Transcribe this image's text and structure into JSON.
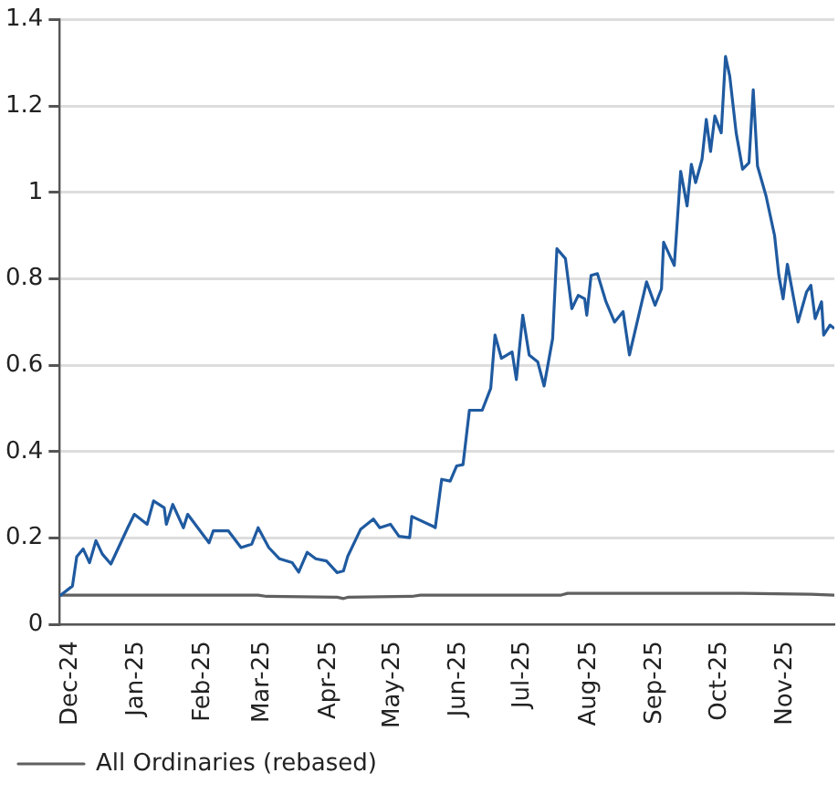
{
  "chart_data": {
    "type": "line",
    "xlim": [
      "2024-11-26",
      "2025-11-24"
    ],
    "ylim": [
      0,
      1.4
    ],
    "yticks": [
      0,
      0.2,
      0.4,
      0.6,
      0.8,
      1,
      1.2,
      1.4
    ],
    "xticks": [
      {
        "value": "2024-12-01",
        "label": "Dec-24"
      },
      {
        "value": "2025-01-01",
        "label": "Jan-25"
      },
      {
        "value": "2025-02-01",
        "label": "Feb-25"
      },
      {
        "value": "2025-03-01",
        "label": "Mar-25"
      },
      {
        "value": "2025-04-01",
        "label": "Apr-25"
      },
      {
        "value": "2025-05-01",
        "label": "May-25"
      },
      {
        "value": "2025-06-01",
        "label": "Jun-25"
      },
      {
        "value": "2025-07-01",
        "label": "Jul-25"
      },
      {
        "value": "2025-08-01",
        "label": "Aug-25"
      },
      {
        "value": "2025-09-01",
        "label": "Sep-25"
      },
      {
        "value": "2025-10-01",
        "label": "Oct-25"
      },
      {
        "value": "2025-11-01",
        "label": "Nov-25"
      }
    ],
    "grid": "y",
    "legend": "bottom",
    "marker": "none",
    "line_style": "solid",
    "series": [
      {
        "color": "#1f5aa0",
        "x": [
          "2024-11-26",
          "2024-12-02",
          "2024-12-04",
          "2024-12-07",
          "2024-12-10",
          "2024-12-13",
          "2024-12-16",
          "2024-12-20",
          "2024-12-28",
          "2024-12-31",
          "2025-01-06",
          "2025-01-09",
          "2025-01-14",
          "2025-01-15",
          "2025-01-18",
          "2025-01-23",
          "2025-01-25",
          "2025-02-04",
          "2025-02-06",
          "2025-02-13",
          "2025-02-19",
          "2025-02-24",
          "2025-02-27",
          "2025-03-04",
          "2025-03-09",
          "2025-03-15",
          "2025-03-18",
          "2025-03-22",
          "2025-03-26",
          "2025-03-31",
          "2025-04-05",
          "2025-04-08",
          "2025-04-10",
          "2025-04-16",
          "2025-04-22",
          "2025-04-25",
          "2025-04-30",
          "2025-05-04",
          "2025-05-09",
          "2025-05-10",
          "2025-05-20",
          "2025-05-21",
          "2025-05-24",
          "2025-05-28",
          "2025-05-31",
          "2025-06-03",
          "2025-06-06",
          "2025-06-12",
          "2025-06-16",
          "2025-06-18",
          "2025-06-21",
          "2025-06-26",
          "2025-06-28",
          "2025-07-01",
          "2025-07-04",
          "2025-07-08",
          "2025-07-11",
          "2025-07-15",
          "2025-07-17",
          "2025-07-21",
          "2025-07-24",
          "2025-07-27",
          "2025-07-30",
          "2025-07-31",
          "2025-08-02",
          "2025-08-05",
          "2025-08-09",
          "2025-08-13",
          "2025-08-17",
          "2025-08-20",
          "2025-08-28",
          "2025-09-01",
          "2025-09-04",
          "2025-09-05",
          "2025-09-10",
          "2025-09-13",
          "2025-09-16",
          "2025-09-18",
          "2025-09-20",
          "2025-09-23",
          "2025-09-25",
          "2025-09-27",
          "2025-09-29",
          "2025-10-02",
          "2025-10-04",
          "2025-10-06",
          "2025-10-09",
          "2025-10-12",
          "2025-10-15",
          "2025-10-17",
          "2025-10-19",
          "2025-10-23",
          "2025-10-27",
          "2025-10-29",
          "2025-10-31",
          "2025-11-02",
          "2025-11-07",
          "2025-11-11",
          "2025-11-13",
          "2025-11-15",
          "2025-11-18",
          "2025-11-19",
          "2025-11-22",
          "2025-11-24"
        ],
        "values": [
          0.066,
          0.089,
          0.157,
          0.175,
          0.143,
          0.194,
          0.163,
          0.14,
          0.225,
          0.255,
          0.232,
          0.286,
          0.27,
          0.232,
          0.278,
          0.224,
          0.255,
          0.189,
          0.217,
          0.217,
          0.178,
          0.186,
          0.224,
          0.178,
          0.152,
          0.143,
          0.121,
          0.167,
          0.152,
          0.147,
          0.12,
          0.124,
          0.158,
          0.22,
          0.244,
          0.224,
          0.232,
          0.204,
          0.201,
          0.25,
          0.227,
          0.224,
          0.336,
          0.332,
          0.367,
          0.37,
          0.496,
          0.496,
          0.547,
          0.67,
          0.616,
          0.631,
          0.567,
          0.716,
          0.624,
          0.608,
          0.552,
          0.662,
          0.87,
          0.847,
          0.731,
          0.762,
          0.754,
          0.716,
          0.808,
          0.812,
          0.747,
          0.7,
          0.724,
          0.624,
          0.793,
          0.739,
          0.777,
          0.885,
          0.831,
          1.049,
          0.969,
          1.065,
          1.023,
          1.077,
          1.169,
          1.095,
          1.177,
          1.138,
          1.315,
          1.269,
          1.138,
          1.054,
          1.069,
          1.238,
          1.061,
          0.992,
          0.9,
          0.808,
          0.754,
          0.834,
          0.7,
          0.77,
          0.785,
          0.708,
          0.747,
          0.67,
          0.693,
          0.685
        ]
      },
      {
        "name": "All Ordinaries (rebased)",
        "color": "#606060",
        "x": [
          "2024-11-26",
          "2025-02-27",
          "2025-03-03",
          "2025-04-05",
          "2025-04-08",
          "2025-04-10",
          "2025-05-10",
          "2025-05-14",
          "2025-07-19",
          "2025-07-22",
          "2025-10-12",
          "2025-11-13",
          "2025-11-24"
        ],
        "values": [
          0.068,
          0.068,
          0.065,
          0.063,
          0.06,
          0.063,
          0.065,
          0.068,
          0.068,
          0.072,
          0.072,
          0.07,
          0.068
        ]
      }
    ]
  }
}
